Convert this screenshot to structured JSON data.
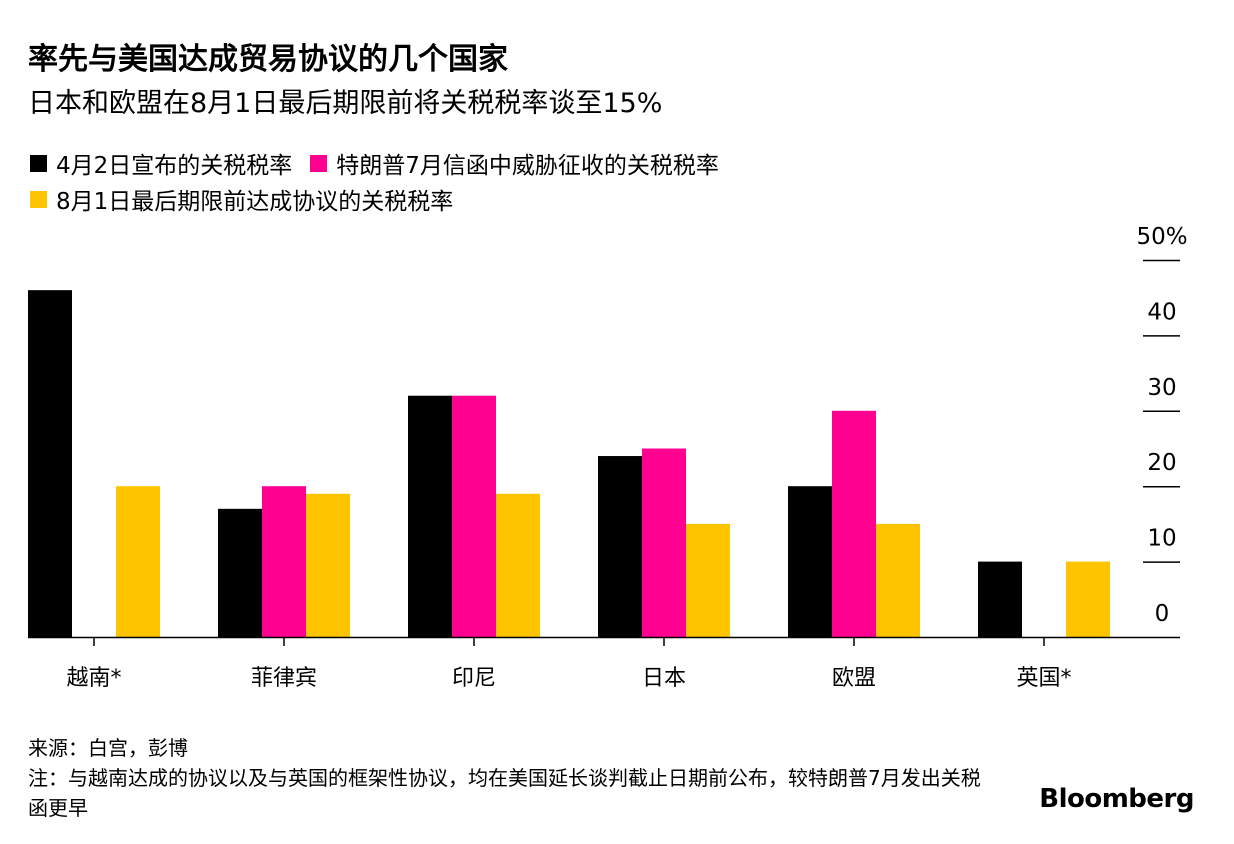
{
  "header": {
    "title": "率先与美国达成贸易协议的几个国家",
    "subtitle": "日本和欧盟在8月1日最后期限前将关税税率谈至15%"
  },
  "chart_data": {
    "type": "bar",
    "categories": [
      "越南*",
      "菲律宾",
      "印尼",
      "日本",
      "欧盟",
      "英国*"
    ],
    "series": [
      {
        "name": "4月2日宣布的关税税率",
        "color": "#000000",
        "values": [
          46,
          17,
          32,
          24,
          20,
          10
        ]
      },
      {
        "name": "特朗普7月信函中威胁征收的关税税率",
        "color": "#ff0090",
        "values": [
          null,
          20,
          32,
          25,
          30,
          null
        ]
      },
      {
        "name": "8月1日最后期限前达成协议的关税税率",
        "color": "#ffc400",
        "values": [
          20,
          19,
          19,
          15,
          15,
          10
        ]
      }
    ],
    "y_axis": {
      "ylim": [
        0,
        50
      ],
      "ticks": [
        0,
        10,
        20,
        30,
        40,
        50
      ],
      "tick_labels": [
        "0",
        "10",
        "20",
        "30",
        "40",
        "50%"
      ],
      "position": "right"
    },
    "legend_placement": "top-left",
    "grid": false
  },
  "footer": {
    "source": "来源：白宫，彭博",
    "note": "注：与越南达成的协议以及与英国的框架性协议，均在美国延长谈判截止日期前公布，较特朗普7月发出关税函更早",
    "brand": "Bloomberg"
  }
}
